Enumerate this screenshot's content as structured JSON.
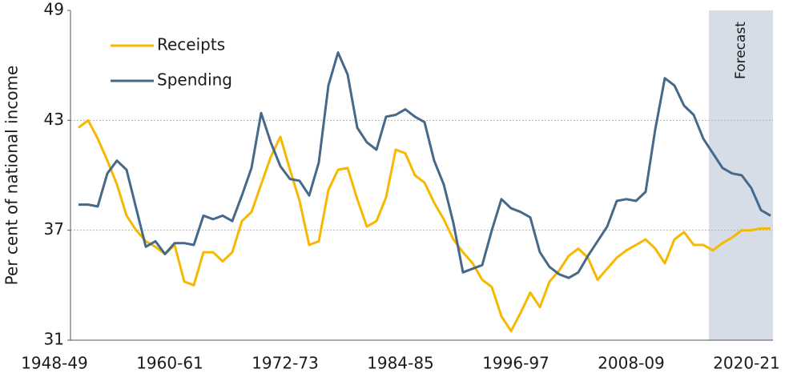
{
  "chart_data": {
    "type": "line",
    "y_label": "Per cent of national income",
    "categories": [
      "1948-49",
      null,
      null,
      null,
      null,
      null,
      null,
      null,
      null,
      null,
      null,
      null,
      "1960-61",
      null,
      null,
      null,
      null,
      null,
      null,
      null,
      null,
      null,
      null,
      null,
      "1972-73",
      null,
      null,
      null,
      null,
      null,
      null,
      null,
      null,
      null,
      null,
      null,
      "1984-85",
      null,
      null,
      null,
      null,
      null,
      null,
      null,
      null,
      null,
      null,
      null,
      "1996-97",
      null,
      null,
      null,
      null,
      null,
      null,
      null,
      null,
      null,
      null,
      null,
      "2008-09",
      null,
      null,
      null,
      null,
      null,
      null,
      null,
      null,
      null,
      null,
      null,
      "2020-21"
    ],
    "series": [
      {
        "name": "Receipts",
        "color": "#f6b800",
        "values": [
          42.6,
          43.0,
          42.0,
          40.8,
          39.5,
          37.8,
          37.0,
          36.4,
          36.1,
          35.7,
          36.2,
          34.2,
          34.0,
          35.8,
          35.8,
          35.3,
          35.8,
          37.5,
          38.0,
          39.5,
          41.0,
          42.1,
          40.3,
          38.6,
          36.2,
          36.4,
          39.2,
          40.3,
          40.4,
          38.7,
          37.2,
          37.5,
          38.8,
          41.4,
          41.2,
          40.0,
          39.6,
          38.5,
          37.6,
          36.5,
          35.8,
          35.2,
          34.3,
          33.9,
          32.3,
          31.5,
          32.5,
          33.6,
          32.8,
          34.2,
          34.8,
          35.6,
          36.0,
          35.5,
          34.3,
          34.9,
          35.5,
          35.9,
          36.2,
          36.5,
          36.0,
          35.2,
          36.5,
          36.9,
          36.2,
          36.2,
          35.9,
          36.3,
          36.6,
          37.0,
          37.0,
          37.1,
          37.1
        ]
      },
      {
        "name": "Spending",
        "color": "#46698a",
        "values": [
          38.4,
          38.4,
          38.3,
          40.1,
          40.8,
          40.3,
          38.2,
          36.1,
          36.4,
          35.7,
          36.3,
          36.3,
          36.2,
          37.8,
          37.6,
          37.8,
          37.5,
          38.9,
          40.4,
          43.4,
          41.8,
          40.5,
          39.8,
          39.7,
          38.9,
          40.7,
          44.9,
          46.7,
          45.5,
          42.6,
          41.8,
          41.4,
          43.2,
          43.3,
          43.6,
          43.2,
          42.9,
          40.8,
          39.5,
          37.4,
          34.7,
          34.9,
          35.1,
          37.0,
          38.7,
          38.2,
          38.0,
          37.7,
          35.8,
          35.0,
          34.6,
          34.4,
          34.7,
          35.6,
          36.4,
          37.2,
          38.6,
          38.7,
          38.6,
          39.1,
          42.5,
          45.3,
          44.9,
          43.8,
          43.3,
          42.0,
          41.2,
          40.4,
          40.1,
          40.0,
          39.3,
          38.1,
          37.8
        ]
      }
    ],
    "ylim": [
      31,
      49
    ],
    "yticks": [
      31,
      37,
      43,
      49
    ],
    "grid": true,
    "forecast_label": "Forecast",
    "forecast_start_index": 66
  }
}
